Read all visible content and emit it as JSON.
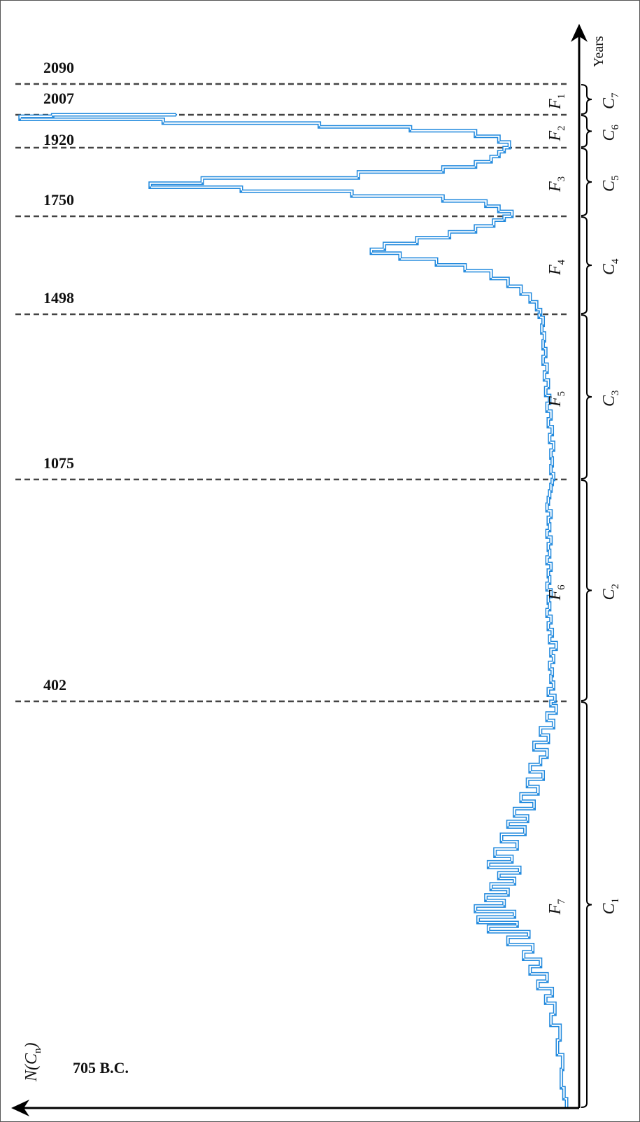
{
  "chart_data": {
    "type": "line",
    "xlabel": "Years",
    "ylabel": "N(Cn)",
    "colors": {
      "series": "#1f88dd",
      "axis": "#000000",
      "divider": "#444444"
    },
    "axis_labels": {
      "y": {
        "main": "N",
        "sub": "n"
      }
    },
    "year_marks": [
      {
        "label": "2090",
        "year": 2090
      },
      {
        "label": "2007",
        "year": 2007
      },
      {
        "label": "1920",
        "year": 1920
      },
      {
        "label": "1750",
        "year": 1750
      },
      {
        "label": "1498",
        "year": 1498
      },
      {
        "label": "1075",
        "year": 1075
      },
      {
        "label": "402",
        "year": 402
      }
    ],
    "start_label": "705 B.C.",
    "segments_F": [
      {
        "sub": "1",
        "from": 2007,
        "to": 2090
      },
      {
        "sub": "2",
        "from": 1920,
        "to": 2007
      },
      {
        "sub": "3",
        "from": 1750,
        "to": 1920
      },
      {
        "sub": "4",
        "from": 1498,
        "to": 1750
      },
      {
        "sub": "5",
        "from": 1075,
        "to": 1498
      },
      {
        "sub": "6",
        "from": 402,
        "to": 1075
      },
      {
        "sub": "7",
        "from": -705,
        "to": 402
      }
    ],
    "segments_C": [
      {
        "sub": "7",
        "from": 2007,
        "to": 2090
      },
      {
        "sub": "6",
        "from": 1920,
        "to": 2007
      },
      {
        "sub": "5",
        "from": 1750,
        "to": 1920
      },
      {
        "sub": "4",
        "from": 1498,
        "to": 1750
      },
      {
        "sub": "3",
        "from": 1075,
        "to": 1498
      },
      {
        "sub": "2",
        "from": 402,
        "to": 1075
      },
      {
        "sub": "1",
        "from": -705,
        "to": 402
      }
    ],
    "series": [
      {
        "values": [
          [
            -705,
            0
          ],
          [
            -680,
            2
          ],
          [
            -650,
            4
          ],
          [
            -600,
            3
          ],
          [
            -560,
            7
          ],
          [
            -520,
            5
          ],
          [
            -480,
            12
          ],
          [
            -450,
            9
          ],
          [
            -420,
            16
          ],
          [
            -400,
            11
          ],
          [
            -380,
            22
          ],
          [
            -360,
            15
          ],
          [
            -340,
            28
          ],
          [
            -320,
            20
          ],
          [
            -300,
            33
          ],
          [
            -280,
            26
          ],
          [
            -260,
            45
          ],
          [
            -240,
            29
          ],
          [
            -225,
            60
          ],
          [
            -210,
            38
          ],
          [
            -200,
            68
          ],
          [
            -185,
            40
          ],
          [
            -170,
            70
          ],
          [
            -155,
            48
          ],
          [
            -140,
            62
          ],
          [
            -125,
            45
          ],
          [
            -110,
            58
          ],
          [
            -95,
            40
          ],
          [
            -80,
            52
          ],
          [
            -65,
            36
          ],
          [
            -50,
            60
          ],
          [
            -35,
            42
          ],
          [
            -20,
            55
          ],
          [
            0,
            38
          ],
          [
            20,
            50
          ],
          [
            40,
            32
          ],
          [
            60,
            45
          ],
          [
            75,
            30
          ],
          [
            90,
            40
          ],
          [
            110,
            25
          ],
          [
            130,
            35
          ],
          [
            150,
            22
          ],
          [
            170,
            30
          ],
          [
            190,
            18
          ],
          [
            210,
            28
          ],
          [
            230,
            20
          ],
          [
            250,
            15
          ],
          [
            270,
            25
          ],
          [
            290,
            14
          ],
          [
            310,
            20
          ],
          [
            330,
            10
          ],
          [
            350,
            15
          ],
          [
            370,
            8
          ],
          [
            390,
            12
          ],
          [
            402,
            9
          ],
          [
            420,
            14
          ],
          [
            440,
            10
          ],
          [
            460,
            12
          ],
          [
            480,
            11
          ],
          [
            500,
            13
          ],
          [
            520,
            10
          ],
          [
            540,
            12
          ],
          [
            560,
            8
          ],
          [
            580,
            13
          ],
          [
            600,
            11
          ],
          [
            620,
            14
          ],
          [
            640,
            12
          ],
          [
            660,
            15
          ],
          [
            680,
            13
          ],
          [
            700,
            14
          ],
          [
            720,
            12
          ],
          [
            740,
            15
          ],
          [
            760,
            13
          ],
          [
            780,
            14
          ],
          [
            800,
            12
          ],
          [
            820,
            15
          ],
          [
            840,
            13
          ],
          [
            860,
            14
          ],
          [
            880,
            12
          ],
          [
            900,
            15
          ],
          [
            920,
            13
          ],
          [
            940,
            14
          ],
          [
            960,
            12
          ],
          [
            980,
            15
          ],
          [
            1000,
            14
          ],
          [
            1020,
            13
          ],
          [
            1040,
            12
          ],
          [
            1060,
            11
          ],
          [
            1075,
            10
          ],
          [
            1090,
            12
          ],
          [
            1110,
            11
          ],
          [
            1130,
            12
          ],
          [
            1150,
            10
          ],
          [
            1170,
            13
          ],
          [
            1190,
            11
          ],
          [
            1210,
            14
          ],
          [
            1230,
            12
          ],
          [
            1250,
            15
          ],
          [
            1270,
            13
          ],
          [
            1290,
            16
          ],
          [
            1310,
            14
          ],
          [
            1330,
            17
          ],
          [
            1350,
            15
          ],
          [
            1370,
            18
          ],
          [
            1390,
            16
          ],
          [
            1410,
            18
          ],
          [
            1430,
            17
          ],
          [
            1450,
            19
          ],
          [
            1470,
            18
          ],
          [
            1490,
            21
          ],
          [
            1498,
            20
          ],
          [
            1510,
            23
          ],
          [
            1530,
            28
          ],
          [
            1550,
            35
          ],
          [
            1570,
            45
          ],
          [
            1590,
            58
          ],
          [
            1610,
            78
          ],
          [
            1625,
            100
          ],
          [
            1640,
            128
          ],
          [
            1655,
            150
          ],
          [
            1665,
            140
          ],
          [
            1680,
            115
          ],
          [
            1695,
            90
          ],
          [
            1710,
            70
          ],
          [
            1725,
            56
          ],
          [
            1740,
            48
          ],
          [
            1750,
            42
          ],
          [
            1762,
            52
          ],
          [
            1775,
            62
          ],
          [
            1788,
            95
          ],
          [
            1800,
            165
          ],
          [
            1812,
            250
          ],
          [
            1822,
            320
          ],
          [
            1832,
            280
          ],
          [
            1845,
            160
          ],
          [
            1860,
            95
          ],
          [
            1872,
            70
          ],
          [
            1885,
            58
          ],
          [
            1898,
            52
          ],
          [
            1910,
            48
          ],
          [
            1920,
            44
          ],
          [
            1935,
            52
          ],
          [
            1950,
            70
          ],
          [
            1965,
            120
          ],
          [
            1975,
            190
          ],
          [
            1985,
            310
          ],
          [
            1995,
            420
          ],
          [
            2003,
            395
          ],
          [
            2007,
            300
          ]
        ]
      }
    ]
  }
}
